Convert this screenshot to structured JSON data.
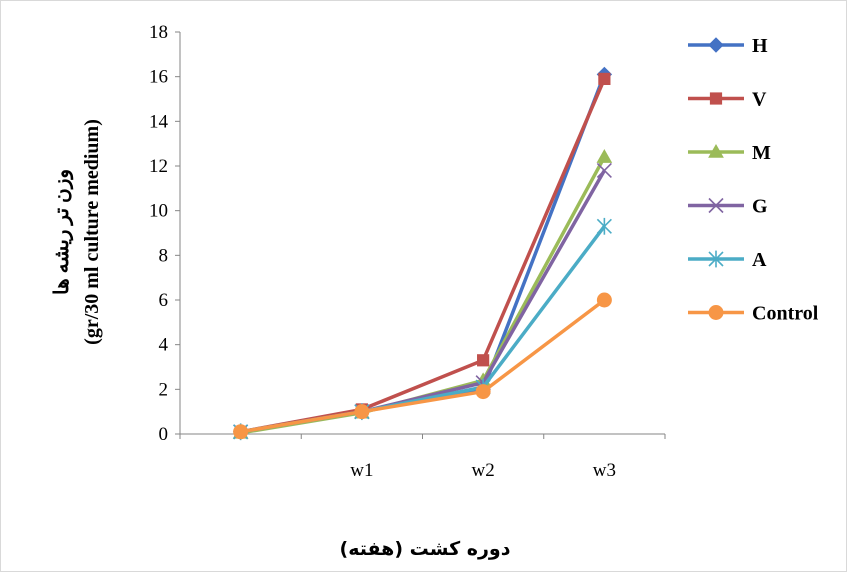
{
  "chart_data": {
    "type": "line",
    "categories": [
      "",
      "w1",
      "w2",
      "w3"
    ],
    "ylim": [
      0,
      18
    ],
    "yticks": [
      0,
      2,
      4,
      6,
      8,
      10,
      12,
      14,
      16,
      18
    ],
    "ylabel_line1": "وزن تر ریشه ها",
    "ylabel_line2": "(gr/30 ml culture medium)",
    "xlabel": "دوره کشت (هفته)",
    "legend_position": "right",
    "series": [
      {
        "name": "H",
        "color": "#4472C4",
        "marker": "diamond",
        "values": [
          0.1,
          1.0,
          2.0,
          16.1
        ]
      },
      {
        "name": "V",
        "color": "#C0504D",
        "marker": "square",
        "values": [
          0.1,
          1.1,
          3.3,
          15.9
        ]
      },
      {
        "name": "M",
        "color": "#9BBB59",
        "marker": "triangle",
        "values": [
          0.05,
          0.95,
          2.4,
          12.4
        ]
      },
      {
        "name": "G",
        "color": "#8064A2",
        "marker": "x",
        "values": [
          0.1,
          1.0,
          2.3,
          11.8
        ]
      },
      {
        "name": "A",
        "color": "#4BACC6",
        "marker": "star",
        "values": [
          0.1,
          1.0,
          2.1,
          9.3
        ]
      },
      {
        "name": "Control",
        "color": "#F79646",
        "marker": "circle",
        "values": [
          0.1,
          1.0,
          1.9,
          6.0
        ]
      }
    ]
  }
}
